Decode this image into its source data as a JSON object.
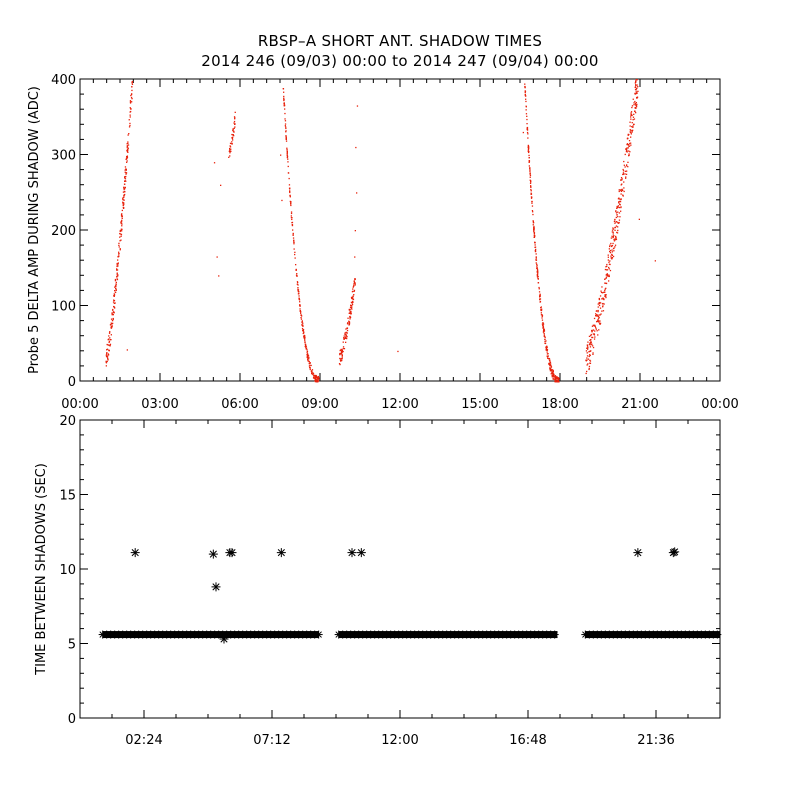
{
  "title": "RBSP–A SHORT ANT. SHADOW TIMES",
  "subtitle": "2014 246 (09/03) 00:00 to 2014 247 (09/04) 00:00",
  "chart_data": [
    {
      "type": "scatter",
      "ylabel": "Probe 5 DELTA AMP DURING SHADOW (ADC)",
      "xlabel": "",
      "xlim": [
        0,
        24
      ],
      "ylim": [
        0,
        400
      ],
      "x_tick_labels": [
        "00:00",
        "03:00",
        "06:00",
        "09:00",
        "12:00",
        "15:00",
        "18:00",
        "21:00",
        "00:00"
      ],
      "x_tick_values": [
        0,
        3,
        6,
        9,
        12,
        15,
        18,
        21,
        24
      ],
      "y_ticks": [
        0,
        100,
        200,
        300,
        400
      ],
      "color": "#e8220c",
      "segments": [
        {
          "x_start": 0.95,
          "x_end": 1.95,
          "y_start": 30,
          "y_end": 400,
          "curve": "rising",
          "n": 260,
          "spread": 14
        },
        {
          "x_start": 5.55,
          "x_end": 5.8,
          "y_start": 300,
          "y_end": 350,
          "curve": "rising",
          "n": 40,
          "spread": 8
        },
        {
          "x_start": 7.6,
          "x_end": 8.95,
          "y_start": 390,
          "y_end": 2,
          "curve": "falling",
          "n": 280,
          "spread": 5
        },
        {
          "x_start": 9.7,
          "x_end": 10.3,
          "y_start": 30,
          "y_end": 135,
          "curve": "rising",
          "n": 130,
          "spread": 10
        },
        {
          "x_start": 16.65,
          "x_end": 17.95,
          "y_start": 400,
          "y_end": 0,
          "curve": "falling",
          "n": 330,
          "spread": 6
        },
        {
          "x_start": 18.95,
          "x_end": 20.9,
          "y_start": 30,
          "y_end": 400,
          "curve": "rising",
          "n": 420,
          "spread": 22
        }
      ],
      "extra_points": [
        {
          "x": 5.02,
          "y": 290
        },
        {
          "x": 5.12,
          "y": 165
        },
        {
          "x": 5.18,
          "y": 140
        },
        {
          "x": 5.25,
          "y": 260
        },
        {
          "x": 1.75,
          "y": 42
        },
        {
          "x": 10.38,
          "y": 365
        },
        {
          "x": 10.32,
          "y": 310
        },
        {
          "x": 10.35,
          "y": 250
        },
        {
          "x": 10.3,
          "y": 200
        },
        {
          "x": 10.28,
          "y": 165
        },
        {
          "x": 11.9,
          "y": 40
        },
        {
          "x": 20.95,
          "y": 215
        },
        {
          "x": 21.55,
          "y": 160
        },
        {
          "x": 7.5,
          "y": 300
        },
        {
          "x": 7.55,
          "y": 240
        },
        {
          "x": 16.6,
          "y": 330
        }
      ]
    },
    {
      "type": "scatter",
      "ylabel": "TIME BETWEEN SHADOWS (SEC)",
      "xlabel": "",
      "xlim": [
        0,
        24
      ],
      "ylim": [
        0,
        20
      ],
      "x_tick_labels": [
        "02:24",
        "07:12",
        "12:00",
        "16:48",
        "21:36"
      ],
      "x_tick_values": [
        2.4,
        7.2,
        12.0,
        16.8,
        21.6
      ],
      "y_ticks": [
        0,
        5,
        10,
        15,
        20
      ],
      "marker": "asterisk",
      "baseline_y": 5.6,
      "baseline_ranges": [
        [
          0.85,
          8.95
        ],
        [
          9.7,
          17.9
        ],
        [
          18.95,
          24.0
        ]
      ],
      "outliers": [
        {
          "x": 2.07,
          "y": 11.1
        },
        {
          "x": 5.0,
          "y": 11.0
        },
        {
          "x": 5.1,
          "y": 8.8
        },
        {
          "x": 5.4,
          "y": 5.3
        },
        {
          "x": 5.62,
          "y": 11.1
        },
        {
          "x": 5.7,
          "y": 11.1
        },
        {
          "x": 7.55,
          "y": 11.1
        },
        {
          "x": 10.2,
          "y": 11.1
        },
        {
          "x": 10.55,
          "y": 11.1
        },
        {
          "x": 20.92,
          "y": 11.1
        },
        {
          "x": 22.25,
          "y": 11.1
        },
        {
          "x": 22.3,
          "y": 11.15
        }
      ]
    }
  ]
}
